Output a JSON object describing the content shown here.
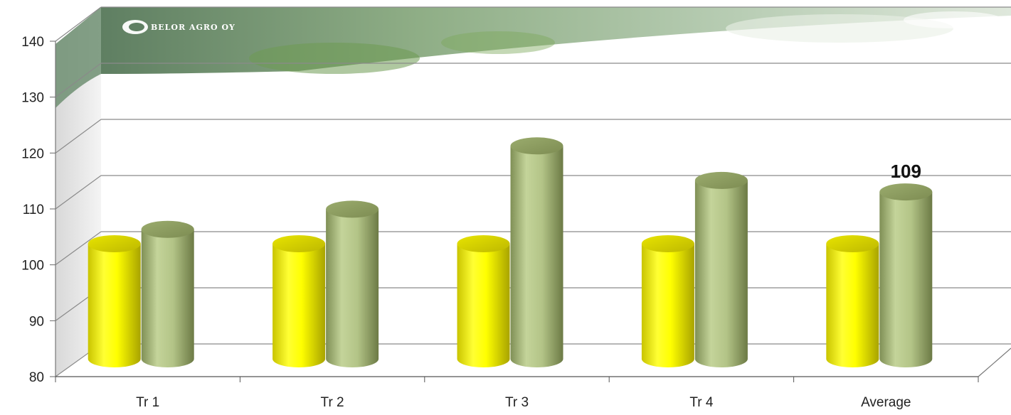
{
  "chart_data": {
    "type": "bar",
    "style": "3d-cylinder",
    "categories": [
      "Tr 1",
      "Tr 2",
      "Tr 3",
      "Tr 4",
      "Average"
    ],
    "series": [
      {
        "values": [
          100,
          100,
          100,
          100,
          100
        ],
        "color": "#ffff00"
      },
      {
        "values": [
          102.5,
          106,
          117,
          111,
          109
        ],
        "color": "#a8bb7c"
      }
    ],
    "data_labels": [
      {
        "series": 1,
        "category": 4,
        "text": "109"
      }
    ],
    "yticks": [
      80,
      90,
      100,
      110,
      120,
      130,
      140
    ],
    "ylim": [
      80,
      140
    ],
    "grid": true,
    "legend": "none"
  },
  "logo": {
    "text": "BELOR AGRO OY"
  }
}
